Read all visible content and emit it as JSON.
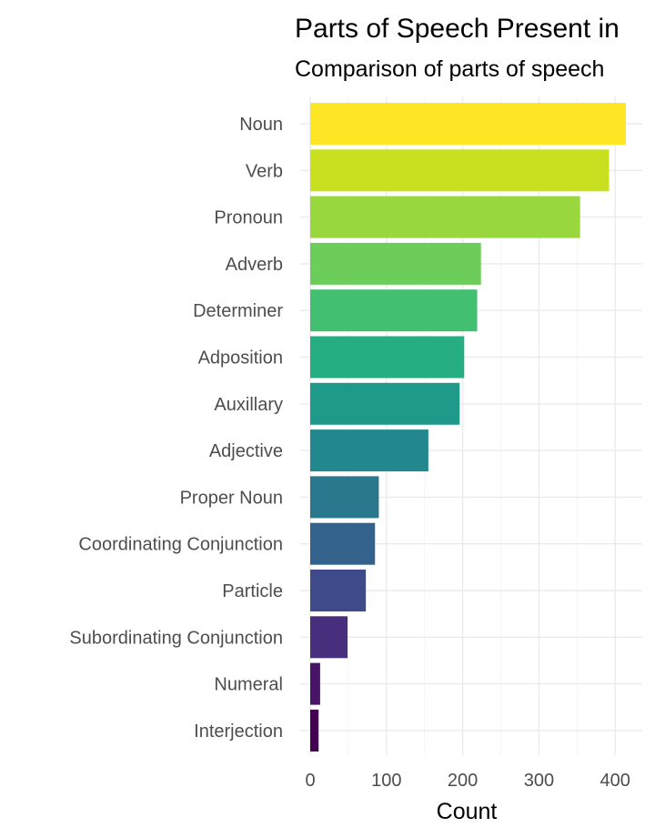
{
  "chart_data": {
    "type": "bar",
    "orientation": "horizontal",
    "title": "Parts of Speech Present in",
    "subtitle": "Comparison of parts of speech",
    "xlabel": "Count",
    "ylabel": "",
    "xlim": [
      0,
      430
    ],
    "xticks": [
      0,
      100,
      200,
      300,
      400
    ],
    "grid": true,
    "legend": "none",
    "categories": [
      "Noun",
      "Verb",
      "Pronoun",
      "Adverb",
      "Determiner",
      "Adposition",
      "Auxillary",
      "Adjective",
      "Proper Noun",
      "Coordinating Conjunction",
      "Particle",
      "Subordinating Conjunction",
      "Numeral",
      "Interjection"
    ],
    "values": [
      414,
      392,
      354,
      224,
      219,
      202,
      196,
      155,
      90,
      85,
      73,
      49,
      13,
      11
    ],
    "colors": [
      "#fde725",
      "#c8e020",
      "#98d83e",
      "#6ccd5a",
      "#43bf71",
      "#26ad81",
      "#1f998a",
      "#23888e",
      "#2a788e",
      "#33638d",
      "#3f4a8a",
      "#472f7d",
      "#481467",
      "#440154"
    ]
  }
}
